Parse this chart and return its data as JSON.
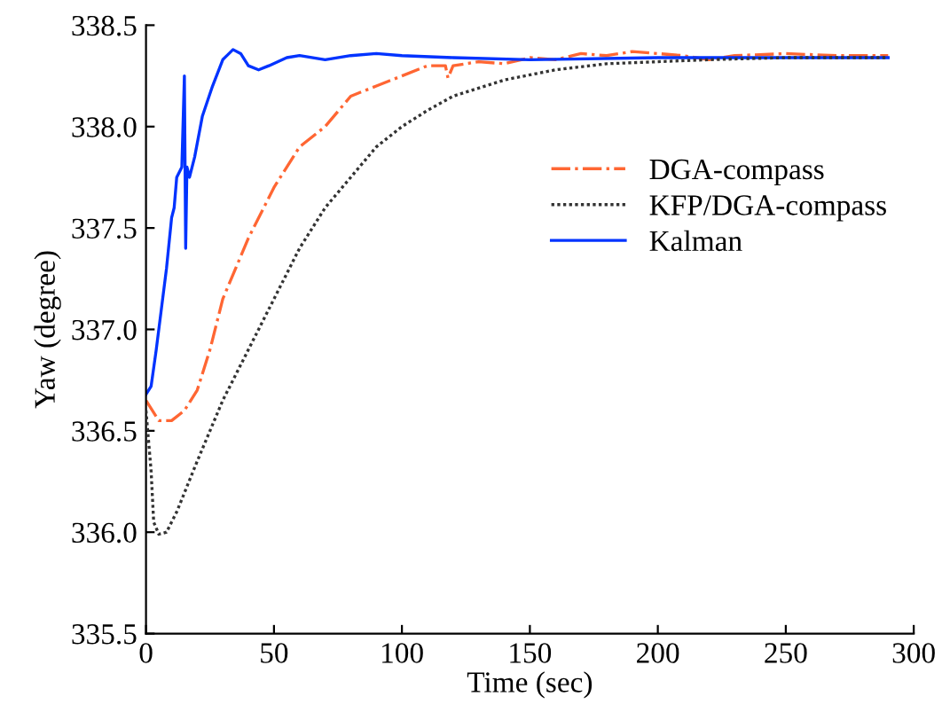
{
  "chart_data": {
    "type": "line",
    "xlabel": "Time (sec)",
    "ylabel": "Yaw (degree)",
    "xlim": [
      0,
      300
    ],
    "ylim": [
      335.5,
      338.5
    ],
    "xticks": [
      0,
      50,
      100,
      150,
      200,
      250,
      300
    ],
    "yticks": [
      {
        "value": 335.5,
        "label": "335.5"
      },
      {
        "value": 336.0,
        "label": "336.0"
      },
      {
        "value": 336.5,
        "label": "336.5"
      },
      {
        "value": 337.0,
        "label": "337.0"
      },
      {
        "value": 337.5,
        "label": "337.5"
      },
      {
        "value": 338.0,
        "label": "338.0"
      },
      {
        "value": 338.5,
        "label": "338.5"
      }
    ],
    "grid": false,
    "legend": "right",
    "marker": "none",
    "series": [
      {
        "name": "DGA-compass",
        "color": "#ff6633",
        "line_style": "dashdot",
        "x": [
          0,
          5,
          10,
          15,
          20,
          25,
          30,
          35,
          40,
          50,
          60,
          70,
          80,
          90,
          100,
          110,
          117,
          118,
          120,
          130,
          140,
          150,
          160,
          170,
          180,
          190,
          200,
          210,
          220,
          230,
          250,
          270,
          290
        ],
        "values": [
          336.65,
          336.55,
          336.55,
          336.6,
          336.7,
          336.9,
          337.15,
          337.3,
          337.45,
          337.7,
          337.9,
          338.0,
          338.15,
          338.2,
          338.25,
          338.3,
          338.3,
          338.24,
          338.3,
          338.32,
          338.31,
          338.34,
          338.33,
          338.36,
          338.35,
          338.37,
          338.36,
          338.35,
          338.33,
          338.35,
          338.36,
          338.35,
          338.35
        ]
      },
      {
        "name": "KFP/DGA-compass",
        "color": "#333333",
        "line_style": "dotted",
        "x": [
          0,
          2,
          3,
          5,
          8,
          12,
          20,
          30,
          40,
          50,
          60,
          70,
          80,
          90,
          100,
          110,
          120,
          140,
          160,
          180,
          200,
          220,
          250,
          290
        ],
        "values": [
          336.6,
          336.3,
          336.05,
          335.99,
          336.0,
          336.1,
          336.35,
          336.65,
          336.9,
          337.15,
          337.4,
          337.6,
          337.75,
          337.9,
          338.0,
          338.08,
          338.15,
          338.23,
          338.28,
          338.31,
          338.32,
          338.33,
          338.34,
          338.34
        ]
      },
      {
        "name": "Kalman",
        "color": "#0033ff",
        "line_style": "solid",
        "x": [
          0,
          2,
          4,
          6,
          8,
          10,
          11,
          12,
          14,
          15,
          15.5,
          16,
          17,
          19,
          22,
          26,
          30,
          34,
          37,
          40,
          44,
          48,
          55,
          60,
          70,
          80,
          90,
          100,
          120,
          150,
          200,
          250,
          290
        ],
        "values": [
          336.68,
          336.72,
          336.9,
          337.1,
          337.3,
          337.55,
          337.6,
          337.75,
          337.8,
          338.25,
          337.4,
          337.8,
          337.75,
          337.85,
          338.05,
          338.2,
          338.33,
          338.38,
          338.36,
          338.3,
          338.28,
          338.3,
          338.34,
          338.35,
          338.33,
          338.35,
          338.36,
          338.35,
          338.34,
          338.33,
          338.34,
          338.34,
          338.34
        ]
      }
    ]
  }
}
